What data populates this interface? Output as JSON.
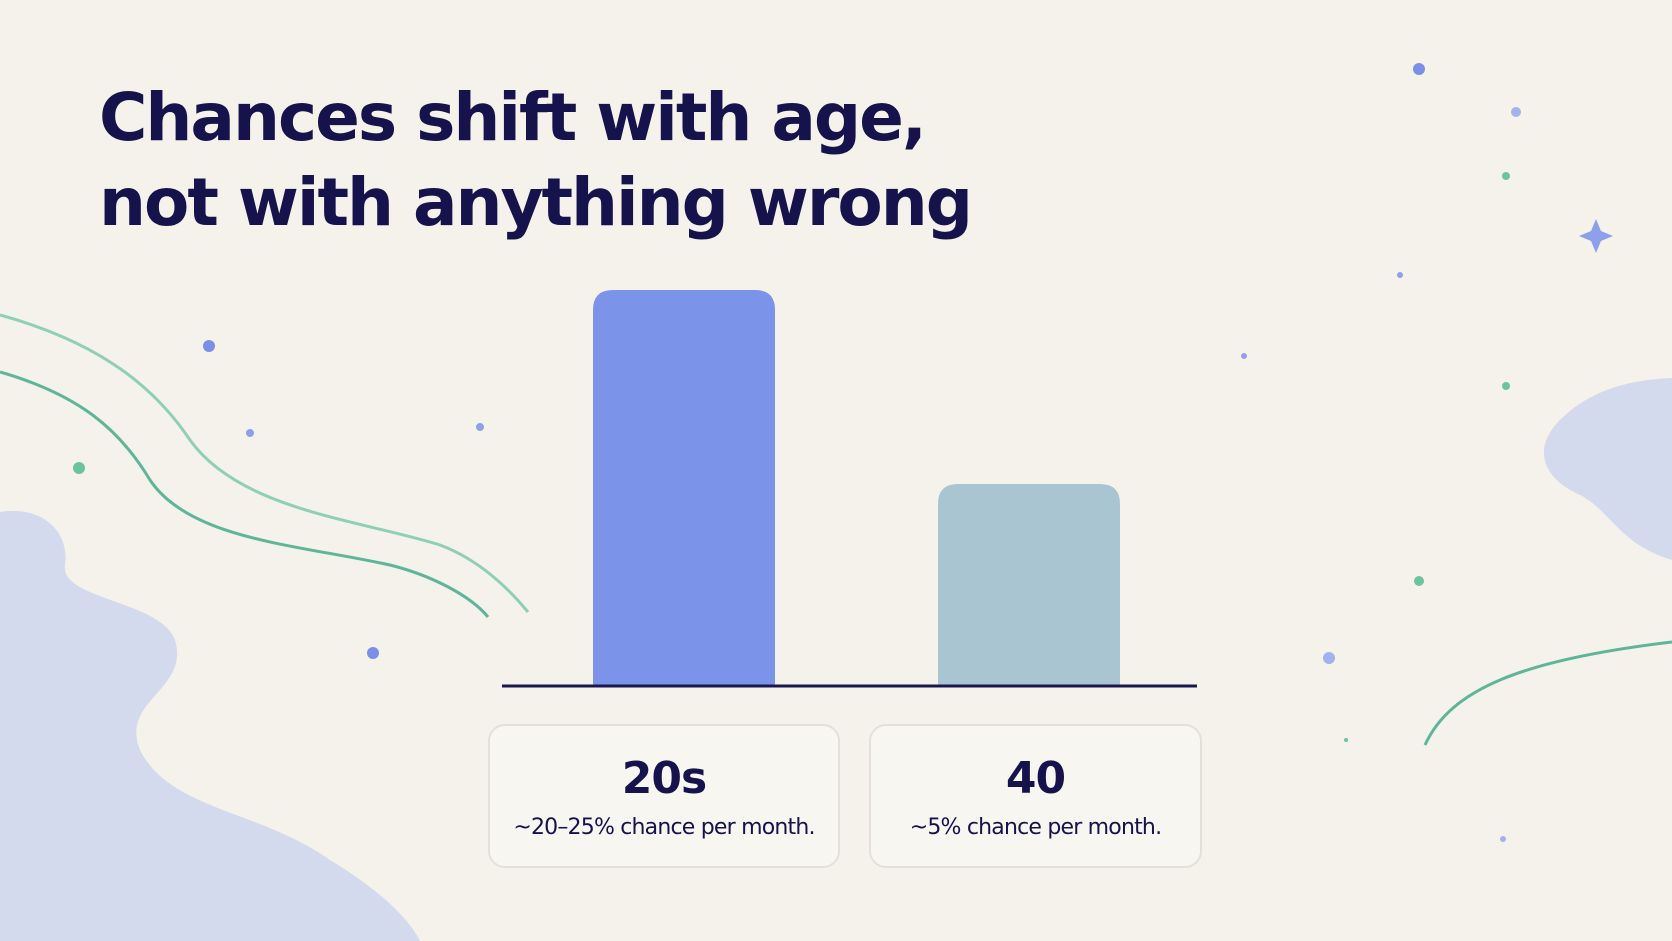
{
  "chart_data": {
    "type": "bar",
    "title": [
      "Chances shift with age,",
      "not with anything wrong"
    ],
    "categories": [
      "20s",
      "40"
    ],
    "descriptions": [
      "~20–25% chance per month.",
      "~5% chance per month."
    ],
    "values": [
      100,
      51
    ],
    "colors": [
      "#7b93e8",
      "#a9c5d1"
    ],
    "ylim": [
      0,
      100
    ]
  }
}
